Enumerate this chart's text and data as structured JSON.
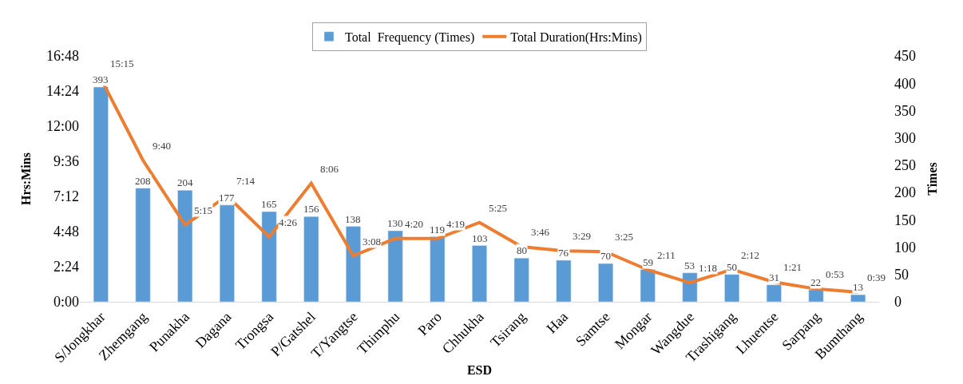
{
  "chart_data": {
    "type": "bar",
    "xlabel": "ESD",
    "ylabel": "Hrs:Mins",
    "y2label": "Times",
    "legend": "top",
    "categories": [
      "S/Jongkhar",
      "Zhemgang",
      "Punakha",
      "Dagana",
      "Trongsa",
      "P/Gatshel",
      "T/Yangtse",
      "Thimphu",
      "Paro",
      "Chhukha",
      "Tsirang",
      "Haa",
      "Samtse",
      "Mongar",
      "Wangdue",
      "Trashigang",
      "Lhuentse",
      "Sarpang",
      "Bumthang"
    ],
    "series": [
      {
        "name": "Total  Frequency (Times)",
        "axis": "y2",
        "color": "#5b9bd5",
        "values": [
          393,
          208,
          204,
          177,
          165,
          156,
          138,
          130,
          119,
          103,
          80,
          76,
          70,
          59,
          53,
          50,
          31,
          22,
          13
        ],
        "value_labels": [
          "393",
          "208",
          "204",
          "177",
          "165",
          "156",
          "138",
          "130",
          "119",
          "103",
          "80",
          "76",
          "70",
          "59",
          "53",
          "50",
          "31",
          "22",
          "13"
        ]
      },
      {
        "name": "Total Duration(Hrs:Mins)",
        "type": "line",
        "axis": "y",
        "color": "#ed7d31",
        "marker": "none",
        "values": [
          15.25,
          9.667,
          5.25,
          7.233,
          4.433,
          8.1,
          3.133,
          4.333,
          4.317,
          5.417,
          3.767,
          3.483,
          3.417,
          2.183,
          1.3,
          2.2,
          1.35,
          0.883,
          0.65
        ],
        "value_labels": [
          "15:15",
          "9:40",
          "5:15",
          "7:14",
          "4:26",
          "8:06",
          "3:08",
          "4:20",
          "4:19",
          "5:25",
          "3:46",
          "3:29",
          "3:25",
          "2:11",
          "1:18",
          "2:12",
          "1:21",
          "0:53",
          "0:39"
        ]
      }
    ],
    "ylim": [
      0,
      16.8
    ],
    "yticks": [
      {
        "value": 0,
        "label": "0:00"
      },
      {
        "value": 2.4,
        "label": "2:24"
      },
      {
        "value": 4.8,
        "label": "4:48"
      },
      {
        "value": 7.2,
        "label": "7:12"
      },
      {
        "value": 9.6,
        "label": "9:36"
      },
      {
        "value": 12,
        "label": "12:00"
      },
      {
        "value": 14.4,
        "label": "14:24"
      },
      {
        "value": 16.8,
        "label": "16:48"
      }
    ],
    "y2lim": [
      0,
      450
    ],
    "y2ticks": [
      0,
      50,
      100,
      150,
      200,
      250,
      300,
      350,
      400,
      450
    ]
  }
}
